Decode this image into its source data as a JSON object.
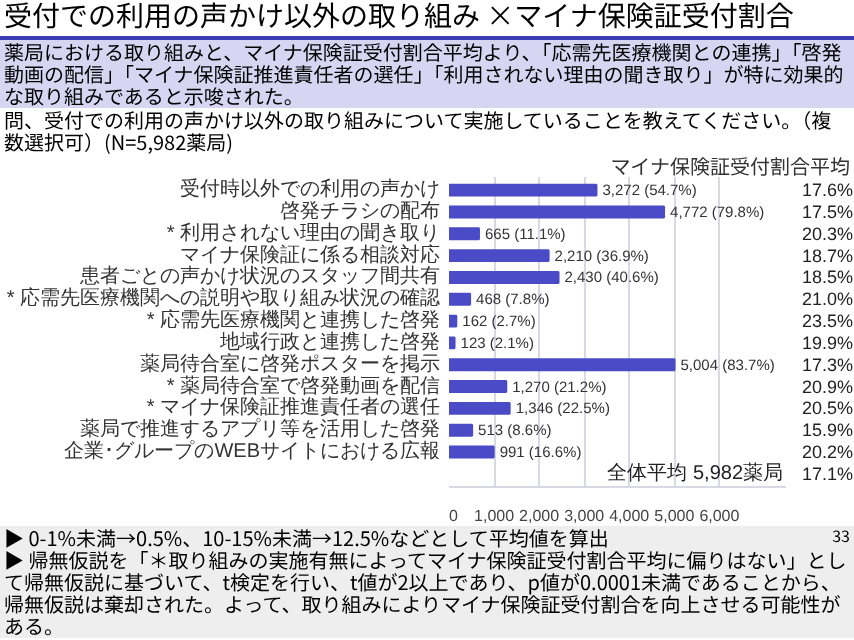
{
  "chart_data": {
    "type": "bar",
    "orientation": "horizontal",
    "title": "受付での利用の声かけ以外の取り組み ×マイナ保険証受付割合",
    "subtitle": "薬局における取り組みと、マイナ保険証受付割合平均より、「応需先医療機関との連携」「啓発動画の配信」「マイナ保険証推進責任者の選任」「利用されない理由の聞き取り」が特に効果的な取り組みであると示唆された。",
    "categories": [
      "受付時以外での利用の声かけ",
      "啓発チラシの配布",
      "* 利用されない理由の聞き取り",
      "マイナ保険証に係る相談対応",
      "患者ごとの声かけ状況のスタッフ間共有",
      "* 応需先医療機関への説明や取り組み状況の確認",
      "* 応需先医療機関と連携した啓発",
      "地域行政と連携した啓発",
      "薬局待合室に啓発ポスターを掲示",
      "* 薬局待合室で啓発動画を配信",
      "* マイナ保険証推進責任者の選任",
      "薬局で推進するアプリ等を活用した啓発",
      "企業･グループのWEBサイトにおける広報"
    ],
    "values": [
      3272,
      4772,
      665,
      2210,
      2430,
      468,
      162,
      123,
      5004,
      1270,
      1346,
      513,
      991
    ],
    "value_labels": [
      "3,272 (54.7%)",
      "4,772 (79.8%)",
      "665 (11.1%)",
      "2,210 (36.9%)",
      "2,430 (40.6%)",
      "468 (7.8%)",
      "162 (2.7%)",
      "123 (2.1%)",
      "5,004 (83.7%)",
      "1,270 (21.2%)",
      "1,346 (22.5%)",
      "513 (8.6%)",
      "991 (16.6%)"
    ],
    "color": "#4b4bc8",
    "xlim": [
      0,
      7500
    ],
    "xticks": [
      0,
      {
        "value": 1000,
        "label": "1,000"
      },
      {
        "value": 2000,
        "label": "2,000"
      },
      {
        "value": 3000,
        "label": "3,000"
      },
      {
        "value": 4000,
        "label": "4,000"
      },
      {
        "value": 5000,
        "label": "5,000"
      },
      {
        "value": 6000,
        "label": "6,000"
      }
    ],
    "grid": "x",
    "annotations": [
      "問、受付での利用の声かけ以外の取り組みについて実施していることを教えてください。（複数選択可）(N=5,982薬局)",
      "マイナ保険証受付割合平均",
      "全体平均 5,982薬局",
      "17.1%",
      "▶ 0-1%未満→0.5%、10-15%未満→12.5%などとして平均値を算出",
      "▶ 帰無仮説を「＊取り組みの実施有無によってマイナ保険証受付割合平均に偏りはない」として帰無仮説に基づいて、t検定を行い、t値が2以上であり、p値が0.0001未満であることから、帰無仮説は棄却された。よって、取り組みによりマイナ保険証受付割合を向上させる可能性がある。",
      "33",
      "17.6%",
      "17.5%",
      "20.3%",
      "18.7%",
      "18.5%",
      "21.0%",
      "23.5%",
      "19.9%",
      "17.3%",
      "20.9%",
      "20.5%",
      "15.9%",
      "20.2%"
    ]
  }
}
